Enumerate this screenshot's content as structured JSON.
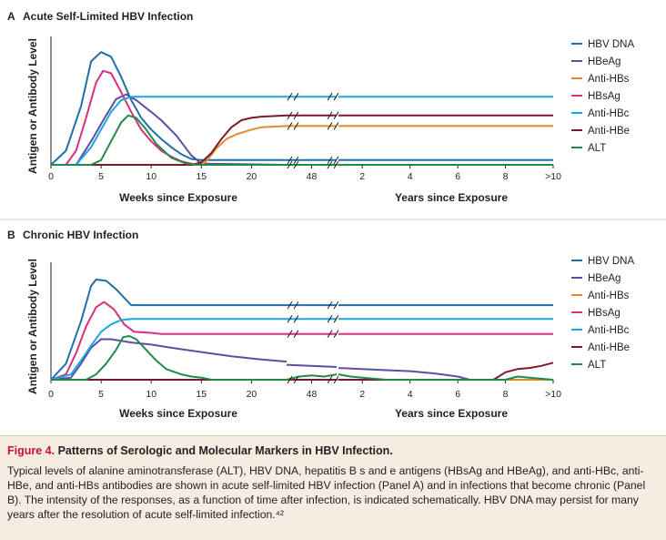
{
  "caption": {
    "figure_label": "Figure 4.",
    "title": "Patterns of Serologic and Molecular Markers in HBV Infection.",
    "text": "Typical levels of alanine aminotransferase (ALT), HBV DNA, hepatitis B s and e antigens (HBsAg and HBeAg), and anti-HBc, anti-HBe, and anti-HBs antibodies are shown in acute self-limited HBV infection (Panel A) and in infections that become chronic (Panel B). The intensity of the responses, as a function of time after infection, is indicated schematically. HBV DNA may persist for many years after the resolution of acute self-limited infection.⁴²"
  },
  "chart_data": [
    {
      "type": "line",
      "panel_letter": "A",
      "title": "Acute Self-Limited HBV Infection",
      "ylabel": "Antigen or Antibody Level",
      "ylim": [
        0,
        100
      ],
      "grid": false,
      "legend_position": "right",
      "x_segments": [
        {
          "xlabel": "Weeks since Exposure",
          "unit": "weeks",
          "ticks": [
            "0",
            "5",
            "10",
            "15",
            "20"
          ],
          "tick_values": [
            0,
            5,
            10,
            15,
            20
          ],
          "range": [
            0,
            23.5
          ]
        },
        {
          "xlabel": "",
          "unit": "weeks",
          "ticks": [
            "48"
          ],
          "tick_values": [
            48
          ],
          "range": [
            46,
            50
          ]
        },
        {
          "xlabel": "Years since Exposure",
          "unit": "years",
          "ticks": [
            "2",
            "4",
            "6",
            "8",
            ">10"
          ],
          "tick_values": [
            2,
            4,
            6,
            8,
            10
          ],
          "range": [
            1,
            10
          ]
        }
      ],
      "series": [
        {
          "name": "HBV DNA",
          "color": "#1f6fa8",
          "points": [
            [
              0,
              0
            ],
            [
              1.5,
              12
            ],
            [
              3,
              50
            ],
            [
              4,
              88
            ],
            [
              5,
              96
            ],
            [
              6,
              92
            ],
            [
              7,
              75
            ],
            [
              8,
              55
            ],
            [
              9,
              40
            ],
            [
              10,
              30
            ],
            [
              11,
              22
            ],
            [
              12,
              15
            ],
            [
              13,
              9
            ],
            [
              14,
              5
            ],
            [
              15,
              4
            ],
            [
              17,
              4
            ],
            [
              20,
              4
            ],
            [
              23.5,
              4
            ],
            [
              46,
              4
            ],
            [
              50,
              4
            ],
            [
              1,
              4
            ],
            [
              10,
              4
            ]
          ]
        },
        {
          "name": "HBeAg",
          "color": "#5b4fa0",
          "points": [
            [
              0,
              0
            ],
            [
              2.5,
              0
            ],
            [
              4,
              20
            ],
            [
              5.5,
              42
            ],
            [
              6.5,
              56
            ],
            [
              7.5,
              60
            ],
            [
              8.5,
              55
            ],
            [
              10,
              45
            ],
            [
              11,
              38
            ],
            [
              12.5,
              25
            ],
            [
              14,
              8
            ],
            [
              15,
              1
            ],
            [
              23.5,
              0
            ],
            [
              46,
              0
            ],
            [
              50,
              0
            ],
            [
              1,
              0
            ],
            [
              10,
              0
            ]
          ]
        },
        {
          "name": "Anti-HBs",
          "color": "#e8882a",
          "points": [
            [
              0,
              0
            ],
            [
              15,
              0
            ],
            [
              15.5,
              3
            ],
            [
              16.5,
              14
            ],
            [
              17.5,
              22
            ],
            [
              18.5,
              26
            ],
            [
              20,
              30
            ],
            [
              21,
              32
            ],
            [
              23.5,
              33
            ],
            [
              46,
              33
            ],
            [
              50,
              33
            ],
            [
              1,
              33
            ],
            [
              10,
              33
            ]
          ]
        },
        {
          "name": "HBsAg",
          "color": "#d6317e",
          "points": [
            [
              0,
              0
            ],
            [
              1.5,
              0
            ],
            [
              2.5,
              12
            ],
            [
              3.5,
              40
            ],
            [
              4.5,
              70
            ],
            [
              5.2,
              80
            ],
            [
              6,
              78
            ],
            [
              7,
              62
            ],
            [
              8,
              45
            ],
            [
              9,
              30
            ],
            [
              10,
              20
            ],
            [
              11,
              12
            ],
            [
              12,
              7
            ],
            [
              13,
              3
            ],
            [
              14.5,
              0
            ],
            [
              23.5,
              0
            ],
            [
              46,
              0
            ],
            [
              50,
              0
            ],
            [
              1,
              0
            ],
            [
              10,
              0
            ]
          ]
        },
        {
          "name": "Anti-HBc",
          "color": "#1aa7dd",
          "points": [
            [
              0,
              0
            ],
            [
              2.5,
              0
            ],
            [
              4,
              15
            ],
            [
              5,
              30
            ],
            [
              6,
              45
            ],
            [
              7,
              55
            ],
            [
              8,
              58
            ],
            [
              9,
              58
            ],
            [
              23.5,
              58
            ],
            [
              46,
              58
            ],
            [
              50,
              58
            ],
            [
              1,
              58
            ],
            [
              10,
              58
            ]
          ]
        },
        {
          "name": "Anti-HBe",
          "color": "#7a1a2a",
          "points": [
            [
              0,
              0
            ],
            [
              14,
              0
            ],
            [
              15,
              2
            ],
            [
              16,
              10
            ],
            [
              17,
              22
            ],
            [
              18,
              32
            ],
            [
              19,
              38
            ],
            [
              20,
              40
            ],
            [
              21,
              41
            ],
            [
              23.5,
              42
            ],
            [
              46,
              42
            ],
            [
              50,
              42
            ],
            [
              1,
              42
            ],
            [
              10,
              42
            ]
          ]
        },
        {
          "name": "ALT",
          "color": "#1f8a4c",
          "points": [
            [
              0,
              0
            ],
            [
              4,
              0
            ],
            [
              5,
              4
            ],
            [
              6,
              20
            ],
            [
              7,
              36
            ],
            [
              7.7,
              42
            ],
            [
              8.5,
              40
            ],
            [
              9.5,
              30
            ],
            [
              10.5,
              18
            ],
            [
              12,
              6
            ],
            [
              13.5,
              1
            ],
            [
              15,
              0
            ],
            [
              23.5,
              0
            ],
            [
              46,
              0
            ],
            [
              50,
              0
            ],
            [
              1,
              0
            ],
            [
              10,
              0
            ]
          ]
        }
      ]
    },
    {
      "type": "line",
      "panel_letter": "B",
      "title": "Chronic HBV Infection",
      "ylabel": "Antigen or Antibody Level",
      "ylim": [
        0,
        100
      ],
      "grid": false,
      "legend_position": "right",
      "x_segments": [
        {
          "xlabel": "Weeks since Exposure",
          "unit": "weeks",
          "ticks": [
            "0",
            "5",
            "10",
            "15",
            "20"
          ],
          "tick_values": [
            0,
            5,
            10,
            15,
            20
          ],
          "range": [
            0,
            23.5
          ]
        },
        {
          "xlabel": "",
          "unit": "weeks",
          "ticks": [
            "48"
          ],
          "tick_values": [
            48
          ],
          "range": [
            46,
            50
          ]
        },
        {
          "xlabel": "Years since Exposure",
          "unit": "years",
          "ticks": [
            "2",
            "4",
            "6",
            "8",
            ">10"
          ],
          "tick_values": [
            2,
            4,
            6,
            8,
            10
          ],
          "range": [
            1,
            10
          ]
        }
      ],
      "series": [
        {
          "name": "HBV DNA",
          "color": "#1f6fa8",
          "points": [
            [
              0,
              0
            ],
            [
              1.5,
              15
            ],
            [
              3,
              55
            ],
            [
              4,
              88
            ],
            [
              4.5,
              94
            ],
            [
              5.5,
              93
            ],
            [
              6.5,
              85
            ],
            [
              7.5,
              75
            ],
            [
              8,
              70
            ],
            [
              23.5,
              70
            ],
            [
              46,
              70
            ],
            [
              50,
              70
            ],
            [
              1,
              70
            ],
            [
              10,
              70
            ]
          ]
        },
        {
          "name": "HBeAg",
          "color": "#5b4fa0",
          "points": [
            [
              0,
              0
            ],
            [
              2,
              2
            ],
            [
              3,
              15
            ],
            [
              4,
              30
            ],
            [
              5,
              38
            ],
            [
              6,
              38
            ],
            [
              8,
              35
            ],
            [
              10,
              33
            ],
            [
              12,
              30
            ],
            [
              15,
              26
            ],
            [
              18,
              22
            ],
            [
              21,
              19
            ],
            [
              23.5,
              17
            ],
            [
              46,
              14
            ],
            [
              50,
              12
            ],
            [
              1,
              11
            ],
            [
              3,
              9
            ],
            [
              4,
              8
            ],
            [
              5,
              6
            ],
            [
              6,
              3
            ],
            [
              6.5,
              0
            ],
            [
              10,
              0
            ]
          ]
        },
        {
          "name": "Anti-HBs",
          "color": "#e8882a",
          "points": [
            [
              0,
              0
            ],
            [
              23.5,
              0
            ],
            [
              46,
              0
            ],
            [
              50,
              0
            ],
            [
              1,
              0
            ],
            [
              10,
              0
            ]
          ]
        },
        {
          "name": "HBsAg",
          "color": "#d6317e",
          "points": [
            [
              0,
              0
            ],
            [
              1.5,
              5
            ],
            [
              2.5,
              25
            ],
            [
              3.5,
              50
            ],
            [
              4.5,
              68
            ],
            [
              5.3,
              73
            ],
            [
              6.3,
              66
            ],
            [
              7.3,
              52
            ],
            [
              8.3,
              45
            ],
            [
              10,
              44
            ],
            [
              11,
              43
            ],
            [
              23.5,
              43
            ],
            [
              46,
              43
            ],
            [
              50,
              43
            ],
            [
              1,
              43
            ],
            [
              10,
              43
            ]
          ]
        },
        {
          "name": "Anti-HBc",
          "color": "#1aa7dd",
          "points": [
            [
              0,
              0
            ],
            [
              2,
              5
            ],
            [
              3,
              18
            ],
            [
              4,
              32
            ],
            [
              5,
              45
            ],
            [
              6,
              52
            ],
            [
              7,
              56
            ],
            [
              8,
              57
            ],
            [
              9,
              57
            ],
            [
              23.5,
              57
            ],
            [
              46,
              57
            ],
            [
              50,
              57
            ],
            [
              1,
              57
            ],
            [
              10,
              57
            ]
          ]
        },
        {
          "name": "Anti-HBe",
          "color": "#7a1a2a",
          "points": [
            [
              0,
              0
            ],
            [
              23.5,
              0
            ],
            [
              46,
              0
            ],
            [
              50,
              0
            ],
            [
              1,
              0
            ],
            [
              7.5,
              0
            ],
            [
              8,
              7
            ],
            [
              8.5,
              10
            ],
            [
              9,
              11
            ],
            [
              9.5,
              13
            ],
            [
              10,
              16
            ]
          ]
        },
        {
          "name": "ALT",
          "color": "#1f8a4c",
          "points": [
            [
              0,
              0
            ],
            [
              3.5,
              0
            ],
            [
              4.5,
              5
            ],
            [
              5.5,
              15
            ],
            [
              6.5,
              28
            ],
            [
              7.2,
              40
            ],
            [
              7.8,
              41
            ],
            [
              8.5,
              38
            ],
            [
              9.5,
              28
            ],
            [
              10.5,
              18
            ],
            [
              11.5,
              10
            ],
            [
              13,
              5
            ],
            [
              14,
              3
            ],
            [
              15,
              2
            ],
            [
              16,
              0
            ],
            [
              23.5,
              0
            ],
            [
              46,
              0
            ],
            [
              47,
              3
            ],
            [
              48,
              4
            ],
            [
              49,
              3
            ],
            [
              50,
              5
            ],
            [
              1,
              5
            ],
            [
              1.5,
              3
            ],
            [
              2,
              2
            ],
            [
              3,
              0
            ],
            [
              8,
              0
            ],
            [
              8.5,
              3
            ],
            [
              9,
              2
            ],
            [
              10,
              0
            ]
          ]
        }
      ]
    }
  ]
}
